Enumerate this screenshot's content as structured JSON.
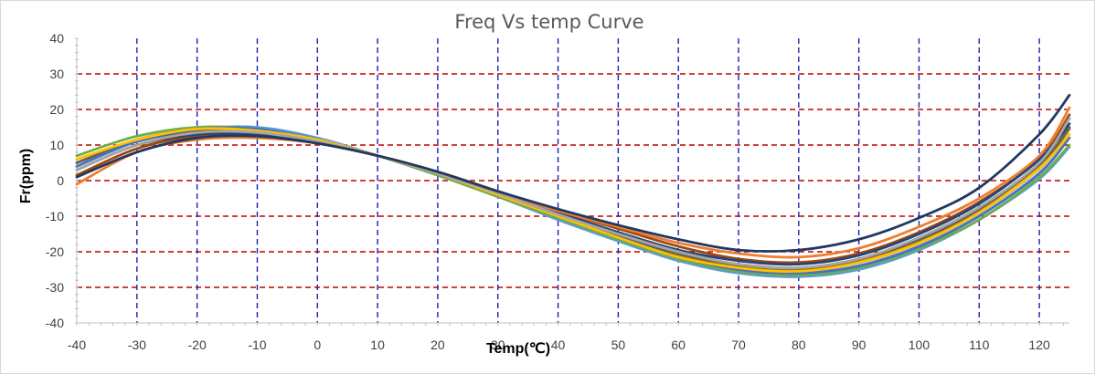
{
  "chart_data": {
    "type": "line",
    "title": "Freq Vs temp Curve",
    "xlabel": "Temp(℃)",
    "ylabel": "Fr(ppm)",
    "xlim": [
      -40,
      125
    ],
    "ylim": [
      -40,
      40
    ],
    "x_ticks": [
      -40,
      -30,
      -20,
      -10,
      0,
      10,
      20,
      30,
      40,
      50,
      60,
      70,
      80,
      90,
      100,
      110,
      120
    ],
    "y_ticks": [
      -40,
      -30,
      -20,
      -10,
      0,
      10,
      20,
      30,
      40
    ],
    "grid": {
      "vertical": {
        "style": "dashed",
        "color": "#1f1fb4"
      },
      "horizontal": {
        "style": "dashed",
        "color": "#c00000"
      }
    },
    "x": [
      -40,
      -30,
      -20,
      -10,
      0,
      10,
      20,
      30,
      40,
      50,
      60,
      70,
      80,
      90,
      100,
      110,
      120,
      125
    ],
    "series": [
      {
        "color": "#1f3864",
        "values": [
          1,
          8,
          12,
          12.5,
          10.5,
          7,
          2.5,
          -3,
          -8,
          -12.5,
          -16.5,
          -19.5,
          -19.5,
          -16.5,
          -10.5,
          -2,
          13,
          24
        ]
      },
      {
        "color": "#ed7d31",
        "values": [
          -1,
          8,
          11.5,
          12,
          10.5,
          7,
          2.5,
          -3,
          -8.5,
          -13,
          -17.5,
          -20.5,
          -21.5,
          -19,
          -13,
          -5,
          7,
          20.5
        ]
      },
      {
        "color": "#a5a5a5",
        "values": [
          3,
          10,
          13.5,
          13.5,
          11,
          7,
          2,
          -3.5,
          -9.5,
          -15,
          -20,
          -23.5,
          -24.5,
          -22,
          -16,
          -7.5,
          5,
          17.5
        ]
      },
      {
        "color": "#ffc000",
        "values": [
          6,
          11.5,
          14.5,
          14,
          11.5,
          7,
          2,
          -4,
          -10,
          -16,
          -21.5,
          -24.5,
          -25.5,
          -23,
          -17.5,
          -9,
          3.5,
          13
        ]
      },
      {
        "color": "#4472c4",
        "values": [
          4,
          11,
          14.5,
          14.5,
          11.5,
          7,
          2,
          -4,
          -10,
          -16,
          -21.5,
          -25,
          -26,
          -24,
          -18.5,
          -10,
          2,
          12
        ]
      },
      {
        "color": "#70ad47",
        "values": [
          7,
          12.5,
          15,
          14.5,
          11.5,
          7,
          1.5,
          -4.5,
          -10.5,
          -16.5,
          -22,
          -25.5,
          -26.5,
          -24.5,
          -19,
          -11,
          1,
          10
        ]
      },
      {
        "color": "#264478",
        "values": [
          3,
          10,
          13,
          13,
          11,
          7,
          2,
          -3.5,
          -9,
          -14.5,
          -19.5,
          -22.5,
          -23.5,
          -21,
          -15,
          -6.5,
          6,
          16
        ]
      },
      {
        "color": "#9e480e",
        "values": [
          1.5,
          9,
          12.5,
          12.5,
          10.5,
          7,
          2.5,
          -3,
          -8.5,
          -13.5,
          -18.5,
          -22,
          -23,
          -20.5,
          -14.5,
          -6,
          6,
          18.5
        ]
      },
      {
        "color": "#636363",
        "values": [
          5,
          11,
          14,
          14,
          11.5,
          7,
          2,
          -4,
          -10,
          -15.5,
          -20.5,
          -23.5,
          -24.5,
          -22,
          -16.5,
          -8,
          4.5,
          15
        ]
      },
      {
        "color": "#997300",
        "values": [
          5,
          11.5,
          14.5,
          14,
          11.5,
          7,
          2,
          -4,
          -10,
          -16,
          -21,
          -24,
          -25,
          -22.5,
          -17,
          -8.5,
          4,
          14.5
        ]
      },
      {
        "color": "#5b9bd5",
        "values": [
          5,
          11.5,
          14.5,
          15,
          12,
          7,
          1.5,
          -4.5,
          -11,
          -17,
          -22.5,
          -26,
          -27,
          -25,
          -19.5,
          -11,
          0.5,
          9.5
        ]
      },
      {
        "color": "#c9c9c9",
        "values": [
          5,
          11,
          14.5,
          14.5,
          11.5,
          7,
          2,
          -4,
          -10,
          -16,
          -21.5,
          -25,
          -25.5,
          -23.5,
          -18,
          -9.5,
          2.5,
          13
        ]
      }
    ]
  }
}
